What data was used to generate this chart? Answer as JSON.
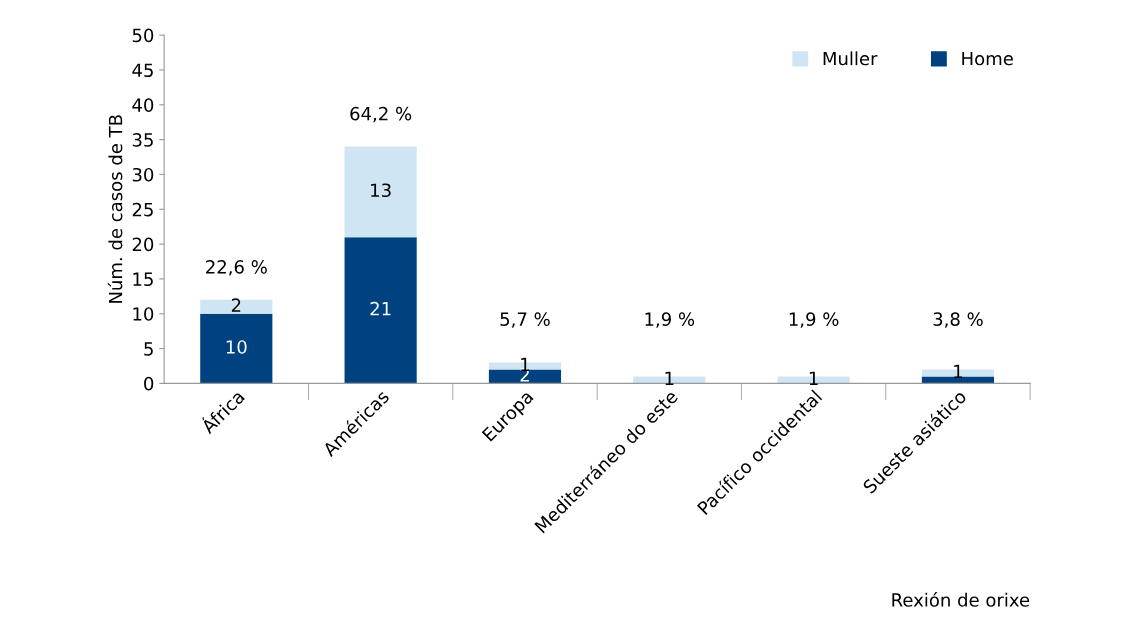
{
  "chart_data": {
    "type": "bar",
    "stacked": true,
    "categories": [
      "África",
      "Américas",
      "Europa",
      "Mediterráneo do este",
      "Pacífico occidental",
      "Sueste asiático"
    ],
    "series": [
      {
        "name": "Home",
        "color": "#00427f",
        "values": [
          10,
          21,
          2,
          0,
          0,
          1
        ],
        "value_labels": [
          "10",
          "21",
          "2",
          null,
          null,
          null
        ]
      },
      {
        "name": "Muller",
        "color": "#cfe5f3",
        "values": [
          2,
          13,
          1,
          1,
          1,
          1
        ],
        "value_labels": [
          "2",
          "13",
          "1",
          "1",
          "1",
          "1"
        ]
      }
    ],
    "xlabel": "Rexión de orixe",
    "ylabel": "Núm. de casos de TB",
    "ylim": [
      0,
      50
    ],
    "yticks": [
      0,
      5,
      10,
      15,
      20,
      25,
      30,
      35,
      40,
      45,
      50
    ],
    "annotations": [
      "22,6 %",
      "64,2 %",
      "5,7 %",
      "1,9 %",
      "1,9 %",
      "3,8 %"
    ],
    "legend": "top right",
    "grid": false
  }
}
